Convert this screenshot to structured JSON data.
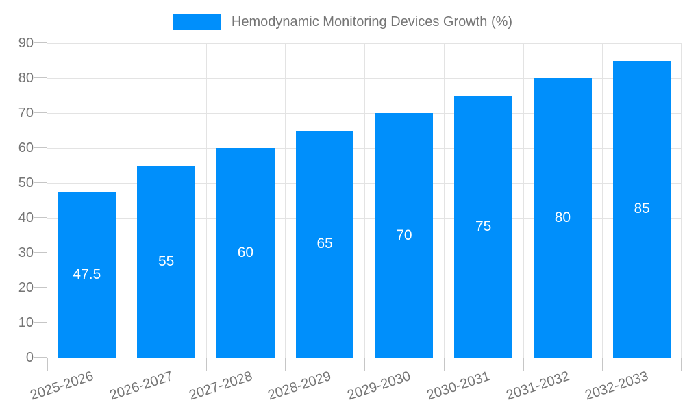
{
  "chart_data": {
    "type": "bar",
    "title": "Hemodynamic Monitoring Devices Growth (%)",
    "legend_position": "top",
    "categories": [
      "2025-2026",
      "2026-2027",
      "2027-2028",
      "2028-2029",
      "2029-2030",
      "2030-2031",
      "2031-2032",
      "2032-2033"
    ],
    "series": [
      {
        "name": "Hemodynamic Monitoring Devices Growth (%)",
        "values": [
          47.5,
          55,
          60,
          65,
          70,
          75,
          80,
          85
        ]
      }
    ],
    "bar_labels": [
      "47.5",
      "55",
      "60",
      "65",
      "70",
      "75",
      "80",
      "85"
    ],
    "xlabel": "",
    "ylabel": "",
    "ylim": [
      0,
      90
    ],
    "yticks": [
      0,
      10,
      20,
      30,
      40,
      50,
      60,
      70,
      80,
      90
    ],
    "grid": "horizontal and vertical",
    "x_tick_label_rotation_deg": -18
  },
  "colors": {
    "bar": "#008FFB",
    "bar_label_text": "#FFFFFF",
    "axis_text": "#757575",
    "legend_text": "#757575",
    "grid_line": "#E3E3E3",
    "axis_line": "#A8A8A8",
    "tick_line": "#C6C6C6",
    "background": "#FFFFFF"
  }
}
